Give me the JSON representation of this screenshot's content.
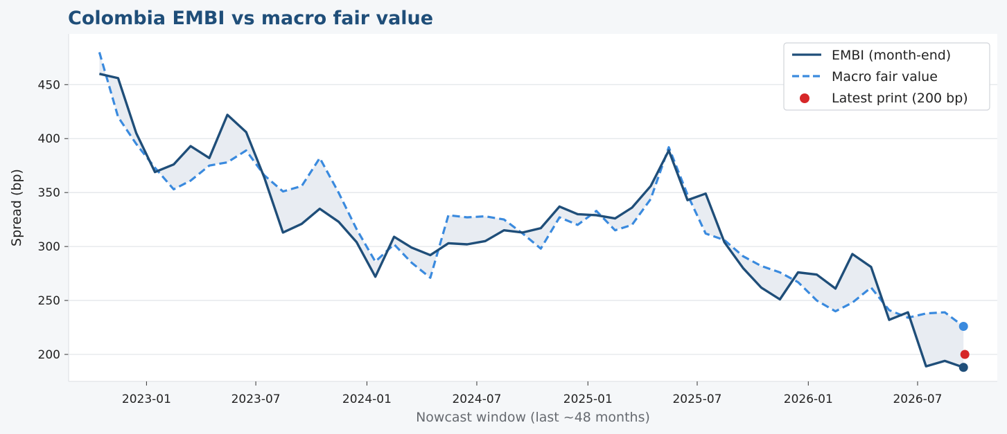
{
  "chart_data": {
    "type": "line",
    "title": "Colombia EMBI vs macro fair value",
    "xlabel": "Nowcast window (last ~48 months)",
    "ylabel": "Spread (bp)",
    "x": [
      "2022-10",
      "2022-11",
      "2022-12",
      "2023-01",
      "2023-02",
      "2023-03",
      "2023-04",
      "2023-05",
      "2023-06",
      "2023-07",
      "2023-08",
      "2023-09",
      "2023-10",
      "2023-11",
      "2023-12",
      "2024-01",
      "2024-02",
      "2024-03",
      "2024-04",
      "2024-05",
      "2024-06",
      "2024-07",
      "2024-08",
      "2024-09",
      "2024-10",
      "2024-11",
      "2024-12",
      "2025-01",
      "2025-02",
      "2025-03",
      "2025-04",
      "2025-05",
      "2025-06",
      "2025-07",
      "2025-08",
      "2025-09",
      "2025-10",
      "2025-11",
      "2025-12",
      "2026-01",
      "2026-02",
      "2026-03",
      "2026-04",
      "2026-05",
      "2026-06",
      "2026-07",
      "2026-08",
      "2026-09"
    ],
    "series": [
      {
        "name": "EMBI (month-end)",
        "color": "#1f4e79",
        "style": "solid",
        "values": [
          460,
          456,
          405,
          369,
          376,
          393,
          382,
          422,
          406,
          364,
          313,
          321,
          335,
          323,
          304,
          272,
          309,
          299,
          292,
          303,
          302,
          305,
          315,
          313,
          317,
          337,
          330,
          329,
          326,
          336,
          356,
          389,
          343,
          349,
          304,
          280,
          262,
          251,
          276,
          274,
          261,
          293,
          281,
          232,
          239,
          189,
          194,
          188
        ]
      },
      {
        "name": "Macro fair value",
        "color": "#3a8ade",
        "style": "dashed",
        "values": [
          480,
          420,
          395,
          373,
          353,
          361,
          375,
          378,
          389,
          366,
          351,
          356,
          382,
          350,
          316,
          286,
          302,
          285,
          271,
          329,
          327,
          328,
          325,
          312,
          298,
          327,
          320,
          333,
          315,
          320,
          344,
          392,
          348,
          312,
          306,
          291,
          282,
          276,
          267,
          250,
          240,
          248,
          262,
          241,
          234,
          238,
          239,
          226
        ]
      }
    ],
    "latest_print": {
      "name": "Latest print (200 bp)",
      "x": "2026-09",
      "value": 200,
      "color": "#d62728"
    },
    "x_ticks": [
      "2023-01",
      "2023-07",
      "2024-01",
      "2024-07",
      "2025-01",
      "2025-07",
      "2026-01",
      "2026-07"
    ],
    "y_ticks": [
      200,
      250,
      300,
      350,
      400,
      450
    ],
    "ylim": [
      175,
      497
    ],
    "xlim": [
      "2022-08-25",
      "2026-11-10"
    ],
    "grid": "horizontal",
    "legend_position": "top-right",
    "fill_between_color": "#e8ecf2",
    "title_color": "#1f4e79"
  }
}
